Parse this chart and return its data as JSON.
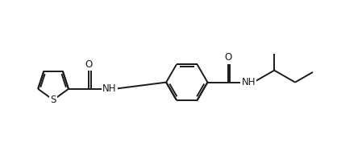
{
  "background_color": "#ffffff",
  "line_color": "#1a1a1a",
  "line_width": 1.4,
  "font_size": 8.5,
  "fig_width": 4.18,
  "fig_height": 1.82,
  "dpi": 100,
  "xlim": [
    0,
    10.0
  ],
  "ylim": [
    0,
    4.36
  ]
}
